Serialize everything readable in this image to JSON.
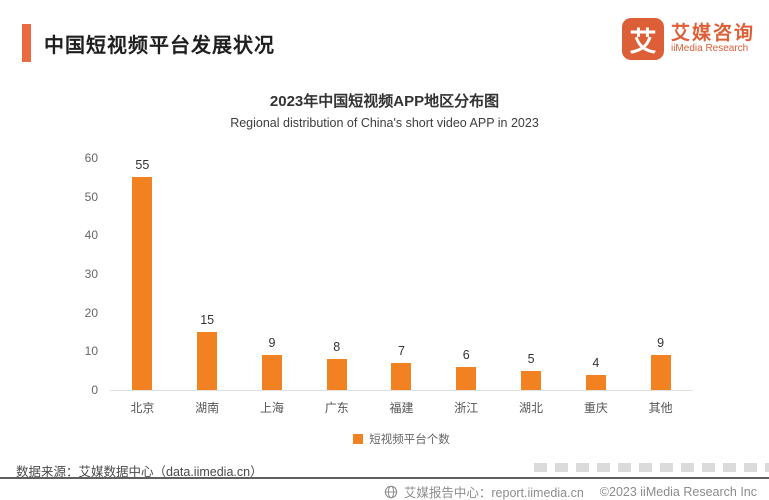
{
  "header": {
    "title": "中国短视频平台发展状况",
    "accent_color": "#EA6A42",
    "logo": {
      "mark_text": "艾",
      "name_cn": "艾媒咨询",
      "name_en": "iiMedia Research",
      "color": "#DD5F38"
    }
  },
  "chart_data": {
    "type": "bar",
    "title": "2023年中国短视频APP地区分布图",
    "subtitle": "Regional distribution of China's short video APP in 2023",
    "categories": [
      "北京",
      "湖南",
      "上海",
      "广东",
      "福建",
      "浙江",
      "湖北",
      "重庆",
      "其他"
    ],
    "values": [
      55,
      15,
      9,
      8,
      7,
      6,
      5,
      4,
      9
    ],
    "series_name": "短视频平台个数",
    "xlabel": "",
    "ylabel": "",
    "ylim": [
      0,
      60
    ],
    "yticks": [
      0,
      10,
      20,
      30,
      40,
      50,
      60
    ],
    "bar_color": "#F28122",
    "grid": false,
    "legend_position": "bottom"
  },
  "legend": {
    "label": "短视频平台个数",
    "swatch_color": "#F28122"
  },
  "source": {
    "text": "数据来源：艾媒数据中心（data.iimedia.cn）"
  },
  "footer": {
    "report_center": "艾媒报告中心：report.iimedia.cn",
    "copyright": "©2023  iiMedia Research  Inc"
  }
}
